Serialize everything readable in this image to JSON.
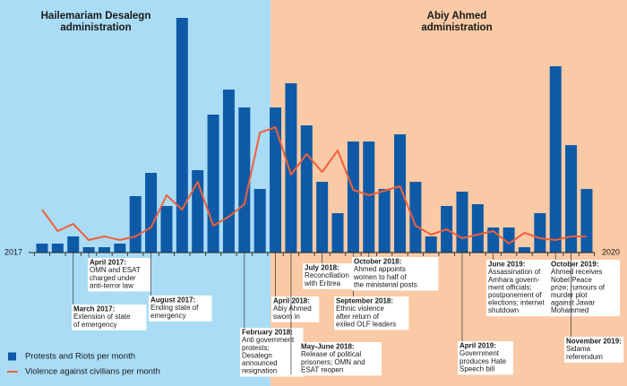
{
  "chart_data": {
    "type": "bar-line",
    "periods": [
      {
        "title": [
          "Hailemariam Desalegn",
          "administration"
        ],
        "color": "#aadcf6"
      },
      {
        "title": [
          "Abiy Ahmed",
          "administration"
        ],
        "color": "#f9caa5"
      }
    ],
    "x_start_label": "2017",
    "x_end_label": "2020",
    "ylim": [
      0,
      270
    ],
    "series": [
      {
        "name": "Protests and Riots per month",
        "kind": "bar",
        "color": "#0e5aa7",
        "values": [
          10,
          10,
          18,
          6,
          6,
          10,
          63,
          89,
          52,
          262,
          92,
          154,
          182,
          162,
          71,
          162,
          189,
          142,
          79,
          44,
          124,
          124,
          71,
          132,
          79,
          18,
          52,
          68,
          54,
          28,
          28,
          6,
          44,
          208,
          120,
          71
        ]
      },
      {
        "name": "Violence against civilians per month",
        "kind": "line",
        "color": "#f0603a",
        "values": [
          48,
          24,
          32,
          14,
          18,
          14,
          18,
          28,
          64,
          48,
          79,
          30,
          40,
          54,
          134,
          140,
          87,
          110,
          90,
          114,
          70,
          64,
          69,
          74,
          30,
          20,
          26,
          16,
          20,
          24,
          10,
          22,
          16,
          14,
          18,
          18
        ]
      }
    ],
    "annotations": [
      {
        "date": "April 2017:",
        "text": [
          "OMN and ESAT",
          "charged under",
          "anti-terror law"
        ]
      },
      {
        "date": "March 2017:",
        "text": [
          "Extension of state",
          "of emergency"
        ]
      },
      {
        "date": "August 2017:",
        "text": [
          "Ending state of",
          "emergency"
        ]
      },
      {
        "date": "February 2018:",
        "text": [
          "Anti government",
          "protests;",
          "Desalegn",
          "announced",
          "resignation"
        ]
      },
      {
        "date": "April 2018:",
        "text": [
          "Abiy Ahmed",
          "sworn in"
        ]
      },
      {
        "date": "May-June 2018:",
        "text": [
          "Release of political",
          "prisoners; OMN and",
          "ESAT reopen"
        ]
      },
      {
        "date": "July 2018:",
        "text": [
          "Reconciliation",
          "with Eritrea"
        ]
      },
      {
        "date": "September 2018:",
        "text": [
          "Ethnic violence",
          "after return of",
          "exiled OLF leaders"
        ]
      },
      {
        "date": "October 2018:",
        "text": [
          "Ahmed appoints",
          "women to half of",
          "the ministerial posts"
        ]
      },
      {
        "date": "April 2019:",
        "text": [
          "Government",
          "produces Hate",
          "Speech bill"
        ]
      },
      {
        "date": "June 2019:",
        "text": [
          "Assassination of",
          "Amhara govern-",
          "ment officials;",
          "postponement of",
          "elections; internet",
          "shutdown"
        ]
      },
      {
        "date": "October 2019:",
        "text": [
          "Ahmed receives",
          "Nobel Peace",
          "prize; rumours of",
          "murder plot",
          "against Jawar",
          "Mohammed"
        ]
      },
      {
        "date": "November 2019:",
        "text": [
          "Sidama",
          "referendum"
        ]
      }
    ]
  }
}
